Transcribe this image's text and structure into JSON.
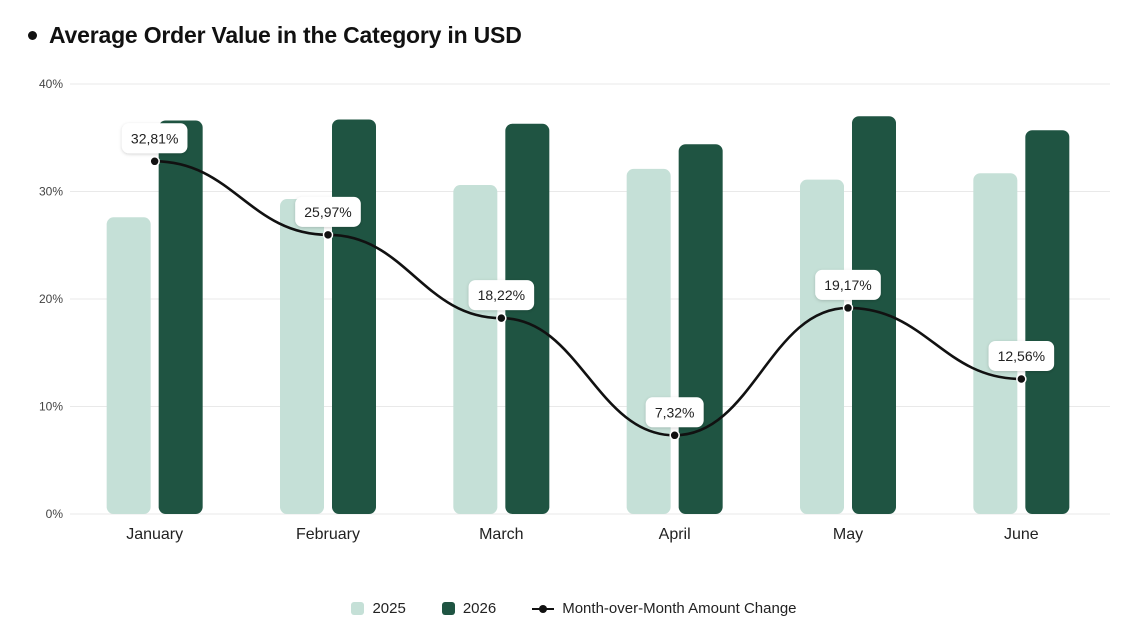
{
  "title": "Average Order Value in the Category in USD",
  "colors": {
    "series_2025": "#c5e0d7",
    "series_2026": "#1f5442",
    "line": "#111111",
    "grid": "#e9e9e9",
    "label_bg": "#ffffff"
  },
  "chart_data": {
    "type": "bar",
    "categories": [
      "January",
      "February",
      "March",
      "April",
      "May",
      "June"
    ],
    "y_tick_labels": [
      "0%",
      "10%",
      "20%",
      "30%",
      "40%"
    ],
    "ylim": [
      0,
      40
    ],
    "grid": true,
    "legend_position": "bottom-center",
    "series": [
      {
        "name": "2025",
        "type": "bar",
        "values": [
          27.6,
          29.3,
          30.6,
          32.1,
          31.1,
          31.7
        ]
      },
      {
        "name": "2026",
        "type": "bar",
        "values": [
          36.6,
          36.7,
          36.3,
          34.4,
          37.0,
          35.7
        ]
      },
      {
        "name": "Month-over-Month Amount Change",
        "type": "line",
        "values": [
          32.81,
          25.97,
          18.22,
          7.32,
          19.17,
          12.56
        ],
        "labels": [
          "32,81%",
          "25,97%",
          "18,22%",
          "7,32%",
          "19,17%",
          "12,56%"
        ]
      }
    ]
  },
  "legend": {
    "items": [
      "2025",
      "2026",
      "Month-over-Month Amount Change"
    ]
  }
}
